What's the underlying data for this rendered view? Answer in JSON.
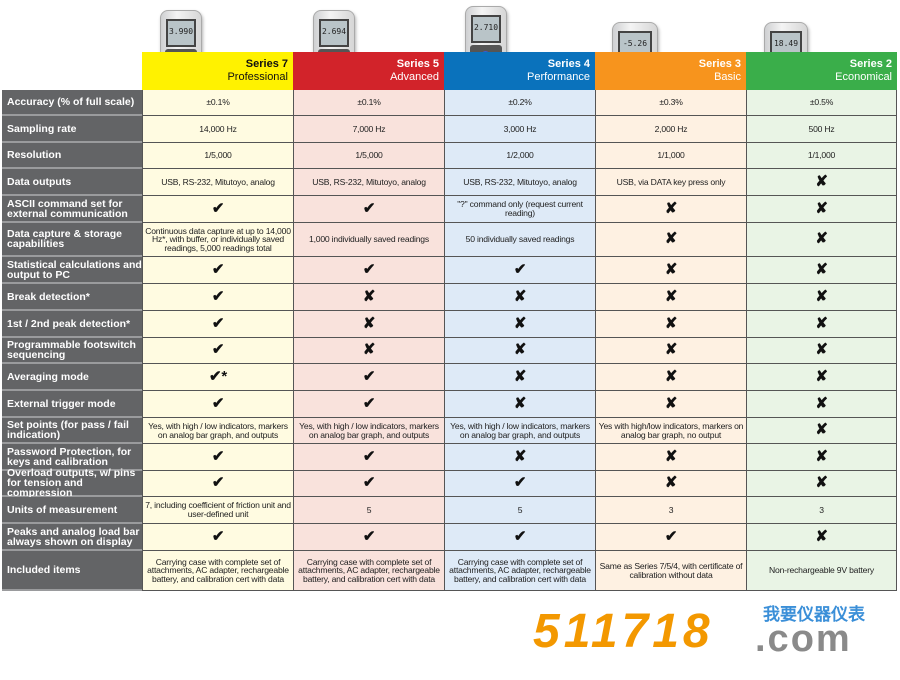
{
  "columns": [
    {
      "series": "Series 7",
      "tier": "Professional",
      "color": "#fff200",
      "cell": "#fffbe1",
      "text": "#111",
      "button": "#f5e31a",
      "screen": "3.990"
    },
    {
      "series": "Series 5",
      "tier": "Advanced",
      "color": "#d2232a",
      "cell": "#f9e2dc",
      "text": "#fff",
      "button": "#e8393f",
      "screen": "2.694"
    },
    {
      "series": "Series 4",
      "tier": "Performance",
      "color": "#0a72bc",
      "cell": "#deeaf7",
      "text": "#fff",
      "button": "#3c5bd8",
      "screen": "2.710"
    },
    {
      "series": "Series 3",
      "tier": "Basic",
      "color": "#f7941d",
      "cell": "#fef1e2",
      "text": "#fff",
      "button": "#e9582a",
      "screen": "-5.26"
    },
    {
      "series": "Series 2",
      "tier": "Economical",
      "color": "#3aae4a",
      "cell": "#e9f4e5",
      "text": "#fff",
      "button": "#6fe23a",
      "screen": "18.49"
    }
  ],
  "rows": [
    {
      "label": "Accuracy (% of full scale)",
      "values": [
        "±0.1%",
        "±0.1%",
        "±0.2%",
        "±0.3%",
        "±0.5%"
      ]
    },
    {
      "label": "Sampling rate",
      "values": [
        "14,000 Hz",
        "7,000 Hz",
        "3,000 Hz",
        "2,000 Hz",
        "500 Hz"
      ]
    },
    {
      "label": "Resolution",
      "values": [
        "1/5,000",
        "1/5,000",
        "1/2,000",
        "1/1,000",
        "1/1,000"
      ]
    },
    {
      "label": "Data outputs",
      "values": [
        "USB, RS-232, Mitutoyo, analog",
        "USB, RS-232, Mitutoyo, analog",
        "USB, RS-232, Mitutoyo, analog",
        "USB, via DATA key press only",
        "✘"
      ]
    },
    {
      "label": "ASCII command set for external communication",
      "values": [
        "✔",
        "✔",
        "\"?\" command only (request current reading)",
        "✘",
        "✘"
      ]
    },
    {
      "label": "Data capture & storage capabilities",
      "values": [
        "Continuous data capture at up to 14,000 Hz*, with buffer, or individually saved readings, 5,000 readings total",
        "1,000 individually saved readings",
        "50 individually saved readings",
        "✘",
        "✘"
      ]
    },
    {
      "label": "Statistical calculations and output to PC",
      "values": [
        "✔",
        "✔",
        "✔",
        "✘",
        "✘"
      ]
    },
    {
      "label": "Break detection*",
      "values": [
        "✔",
        "✘",
        "✘",
        "✘",
        "✘"
      ]
    },
    {
      "label": "1st / 2nd peak detection*",
      "values": [
        "✔",
        "✘",
        "✘",
        "✘",
        "✘"
      ]
    },
    {
      "label": "Programmable footswitch sequencing",
      "values": [
        "✔",
        "✘",
        "✘",
        "✘",
        "✘"
      ]
    },
    {
      "label": "Averaging mode",
      "values": [
        "✔*",
        "✔",
        "✘",
        "✘",
        "✘"
      ]
    },
    {
      "label": "External trigger mode",
      "values": [
        "✔",
        "✔",
        "✘",
        "✘",
        "✘"
      ]
    },
    {
      "label": "Set points (for pass / fail indication)",
      "values": [
        "Yes, with high / low indicators, markers on analog bar graph, and outputs",
        "Yes, with high / low indicators, markers on analog bar graph, and outputs",
        "Yes, with high / low indicators, markers on analog bar graph, and outputs",
        "Yes with high/low indicators, markers on analog bar graph, no output",
        "✘"
      ]
    },
    {
      "label": "Password Protection, for keys and calibration",
      "values": [
        "✔",
        "✔",
        "✘",
        "✘",
        "✘"
      ]
    },
    {
      "label": "Overload outputs, w/ pins for tension and compression",
      "values": [
        "✔",
        "✔",
        "✔",
        "✘",
        "✘"
      ]
    },
    {
      "label": "Units of measurement",
      "values": [
        "7, including coefficient of friction unit and user-defined unit",
        "5",
        "5",
        "3",
        "3"
      ]
    },
    {
      "label": "Peaks and analog load bar always shown on display",
      "values": [
        "✔",
        "✔",
        "✔",
        "✔",
        "✘"
      ]
    },
    {
      "label": "Included items",
      "values": [
        "Carrying case with complete set of attachments, AC adapter, rechargeable battery, and calibration cert with data",
        "Carrying case with complete set of attachments, AC adapter, rechargeable battery, and calibration cert with data",
        "Carrying case with complete set of attachments, AC adapter, rechargeable battery, and calibration cert with data",
        "Same as Series 7/5/4, with certificate of calibration without data",
        "Non-rechargeable 9V battery"
      ]
    }
  ],
  "watermark": {
    "number": "511718",
    "chinese": "我要仪器仪表",
    "domain": ".com"
  }
}
